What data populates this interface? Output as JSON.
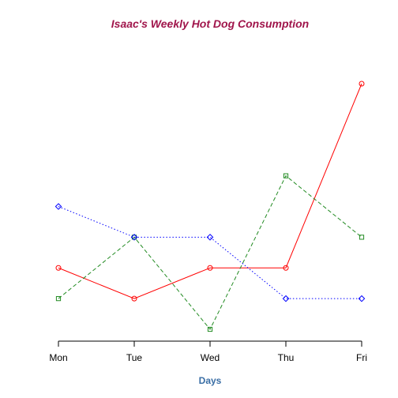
{
  "chart_data": {
    "type": "line",
    "title": "Isaac's Weekly Hot Dog Consumption",
    "xlabel": "Days",
    "ylabel": "",
    "categories": [
      "Mon",
      "Tue",
      "Wed",
      "Thu",
      "Fri"
    ],
    "ylim": [
      0.45,
      9.9
    ],
    "y_axis_shown": false,
    "grid": false,
    "legend": "none",
    "series": [
      {
        "values": [
          4,
          3,
          4,
          4,
          10
        ],
        "color": "#ff0000",
        "line_style": "solid",
        "marker": "circle"
      },
      {
        "values": [
          3,
          5,
          2,
          7,
          5
        ],
        "color": "#228b22",
        "line_style": "dashed",
        "marker": "square"
      },
      {
        "values": [
          6,
          5,
          5,
          3,
          3
        ],
        "color": "#0000ff",
        "line_style": "dotted",
        "marker": "diamond"
      }
    ],
    "colors": {
      "title": "#a0154b",
      "xlabel": "#3a6ea5",
      "axis": "#000000"
    }
  }
}
